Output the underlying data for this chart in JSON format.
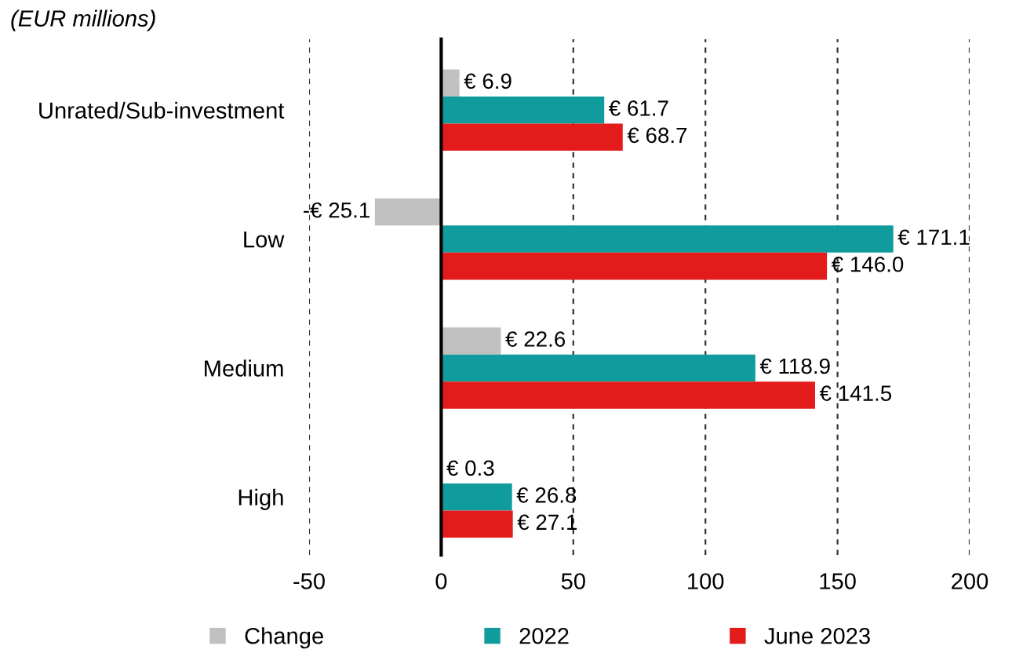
{
  "chart_data": {
    "type": "bar",
    "orientation": "horizontal",
    "subtitle": "(EUR millions)",
    "categories": [
      "Unrated/Sub-investment",
      "Low",
      "Medium",
      "High"
    ],
    "series": [
      {
        "name": "Change",
        "color": "#c0c0c0",
        "values": [
          6.9,
          -25.1,
          22.6,
          0.3
        ],
        "value_labels": [
          "€ 6.9",
          "-€ 25.1",
          "€ 22.6",
          "€ 0.3"
        ]
      },
      {
        "name": "2022",
        "color": "#109c9c",
        "values": [
          61.7,
          171.1,
          118.9,
          26.8
        ],
        "value_labels": [
          "€ 61.7",
          "€ 171.1",
          "€ 118.9",
          "€ 26.8"
        ]
      },
      {
        "name": "June 2023",
        "color": "#e31b1b",
        "values": [
          68.7,
          146.0,
          141.5,
          27.1
        ],
        "value_labels": [
          "€ 68.7",
          "€ 146.0",
          "€ 141.5",
          "€ 27.1"
        ]
      }
    ],
    "xlim": [
      -50,
      200
    ],
    "xticks": [
      -50,
      0,
      50,
      100,
      150,
      200
    ],
    "grid": "x",
    "legend": "bottom"
  }
}
